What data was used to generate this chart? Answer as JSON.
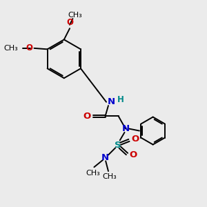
{
  "bg_color": "#ebebeb",
  "bond_color": "#000000",
  "N_color": "#0000cc",
  "O_color": "#cc0000",
  "S_color": "#008888",
  "H_color": "#008888",
  "font_size": 8.5,
  "lw": 1.4,
  "figsize": [
    3.0,
    3.0
  ],
  "dpi": 100,
  "xlim": [
    0,
    10
  ],
  "ylim": [
    0,
    10
  ]
}
